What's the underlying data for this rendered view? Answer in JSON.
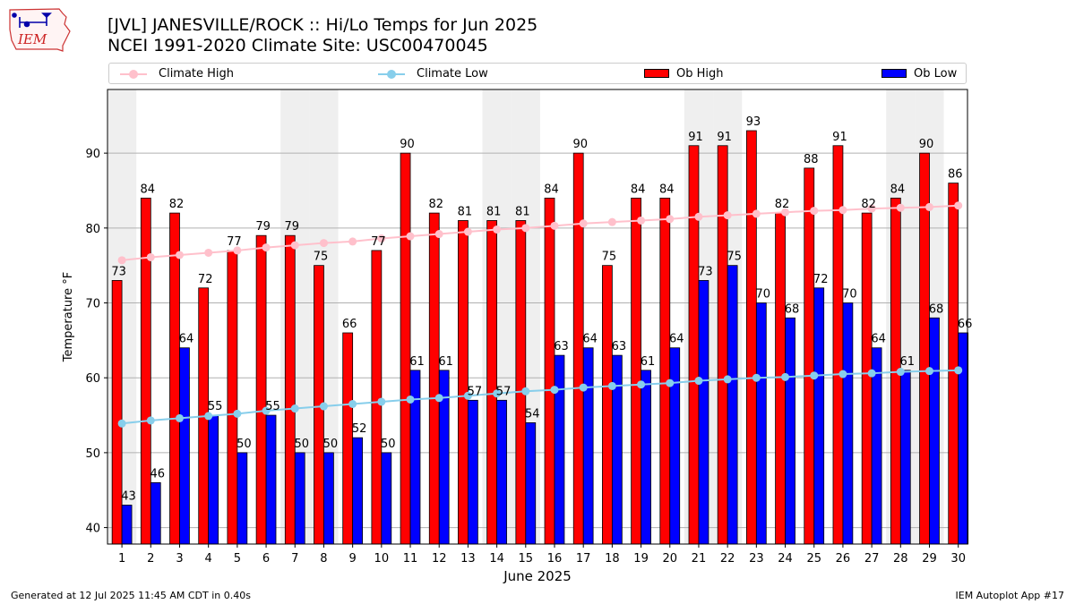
{
  "logo": {
    "text": "IEM",
    "icon": "iem-iowa-logo-icon"
  },
  "header": {
    "title": "[JVL] JANESVILLE/ROCK :: Hi/Lo Temps for Jun 2025",
    "subtitle": "NCEI 1991-2020 Climate Site: USC00470045"
  },
  "legend": {
    "items": [
      {
        "label": "Climate High",
        "color": "#ffc0cb",
        "kind": "line"
      },
      {
        "label": "Climate Low",
        "color": "#87ceeb",
        "kind": "line"
      },
      {
        "label": "Ob High",
        "color": "#ff0000",
        "kind": "bar"
      },
      {
        "label": "Ob Low",
        "color": "#0000ff",
        "kind": "bar"
      }
    ]
  },
  "footer": {
    "left": "Generated at 12 Jul 2025 11:45 AM CDT in 0.40s",
    "right": "IEM Autoplot App #17"
  },
  "chart_data": {
    "type": "bar",
    "xlabel": "June 2025",
    "ylabel": "Temperature °F",
    "ylim": [
      37.8,
      98.5
    ],
    "yticks": [
      40,
      50,
      60,
      70,
      80,
      90
    ],
    "grid": true,
    "legend_position": "top",
    "categories": [
      1,
      2,
      3,
      4,
      5,
      6,
      7,
      8,
      9,
      10,
      11,
      12,
      13,
      14,
      15,
      16,
      17,
      18,
      19,
      20,
      21,
      22,
      23,
      24,
      25,
      26,
      27,
      28,
      29,
      30
    ],
    "weekend_days": [
      1,
      7,
      8,
      14,
      15,
      21,
      22,
      28,
      29
    ],
    "series": [
      {
        "name": "Ob High",
        "type": "bar",
        "color": "#ff0000",
        "values": [
          73,
          84,
          82,
          72,
          77,
          79,
          79,
          75,
          66,
          77,
          90,
          82,
          81,
          81,
          81,
          84,
          90,
          75,
          84,
          84,
          91,
          91,
          93,
          82,
          88,
          91,
          82,
          84,
          90,
          86
        ]
      },
      {
        "name": "Ob Low",
        "type": "bar",
        "color": "#0000ff",
        "values": [
          43,
          46,
          64,
          55,
          50,
          55,
          50,
          50,
          52,
          50,
          61,
          61,
          57,
          57,
          54,
          63,
          64,
          63,
          61,
          64,
          73,
          75,
          70,
          68,
          72,
          70,
          64,
          61,
          68,
          66
        ]
      },
      {
        "name": "Climate High",
        "type": "line",
        "color": "#ffc0cb",
        "values": [
          75.7,
          76.1,
          76.4,
          76.7,
          77.0,
          77.4,
          77.7,
          78.0,
          78.2,
          78.6,
          78.9,
          79.2,
          79.5,
          79.8,
          80.0,
          80.3,
          80.6,
          80.8,
          81.0,
          81.2,
          81.5,
          81.7,
          81.9,
          82.1,
          82.3,
          82.4,
          82.6,
          82.7,
          82.8,
          83.0
        ]
      },
      {
        "name": "Climate Low",
        "type": "line",
        "color": "#87ceeb",
        "values": [
          53.9,
          54.3,
          54.6,
          54.9,
          55.2,
          55.6,
          55.9,
          56.2,
          56.5,
          56.8,
          57.1,
          57.3,
          57.6,
          57.9,
          58.2,
          58.4,
          58.7,
          58.9,
          59.1,
          59.3,
          59.6,
          59.8,
          60.0,
          60.1,
          60.3,
          60.5,
          60.6,
          60.8,
          60.9,
          61.0
        ]
      }
    ]
  }
}
